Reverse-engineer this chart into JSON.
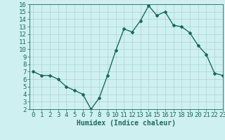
{
  "x": [
    0,
    1,
    2,
    3,
    4,
    5,
    6,
    7,
    8,
    9,
    10,
    11,
    12,
    13,
    14,
    15,
    16,
    17,
    18,
    19,
    20,
    21,
    22,
    23
  ],
  "y": [
    7.0,
    6.5,
    6.5,
    6.0,
    5.0,
    4.5,
    4.0,
    2.0,
    3.5,
    6.5,
    9.8,
    12.7,
    12.3,
    13.8,
    15.8,
    14.5,
    15.0,
    13.2,
    13.0,
    12.2,
    10.5,
    9.3,
    6.8,
    6.5
  ],
  "line_color": "#1a6b5a",
  "marker": "D",
  "marker_size": 2.0,
  "line_width": 1.0,
  "bg_color": "#cff0f0",
  "grid_color": "#aad4d4",
  "xlabel": "Humidex (Indice chaleur)",
  "ylim": [
    2,
    16
  ],
  "xlim": [
    -0.5,
    23
  ],
  "yticks": [
    2,
    3,
    4,
    5,
    6,
    7,
    8,
    9,
    10,
    11,
    12,
    13,
    14,
    15,
    16
  ],
  "xticks": [
    0,
    1,
    2,
    3,
    4,
    5,
    6,
    7,
    8,
    9,
    10,
    11,
    12,
    13,
    14,
    15,
    16,
    17,
    18,
    19,
    20,
    21,
    22,
    23
  ],
  "xlabel_fontsize": 7,
  "tick_fontsize": 6.5
}
